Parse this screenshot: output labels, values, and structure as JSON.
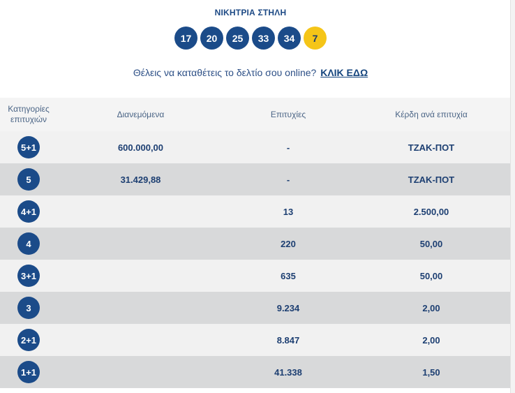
{
  "header": {
    "winning_title": "ΝΙΚΗΤΡΙΑ ΣΤΗΛΗ",
    "numbers": [
      "17",
      "20",
      "25",
      "33",
      "34"
    ],
    "bonus_number": "7",
    "online_text": "Θέλεις να καταθέτεις το δελτίο σου online?",
    "click_here": "ΚΛΙΚ ΕΔΩ"
  },
  "colors": {
    "ball_blue": "#1b4b89",
    "bonus_yellow": "#f5c518",
    "row_light": "#f1f1f1",
    "row_dark": "#d8d9da"
  },
  "table": {
    "headers": {
      "category_line1": "Κατηγορίες",
      "category_line2": "επιτυχιών",
      "distributed": "Διανεμόμενα",
      "winners": "Επιτυχίες",
      "prize_per_winner": "Κέρδη ανά επιτυχία"
    },
    "rows": [
      {
        "category": "5+1",
        "distributed": "600.000,00",
        "winners": "-",
        "prize": "ΤΖΑΚ-ΠΟΤ"
      },
      {
        "category": "5",
        "distributed": "31.429,88",
        "winners": "-",
        "prize": "ΤΖΑΚ-ΠΟΤ"
      },
      {
        "category": "4+1",
        "distributed": "",
        "winners": "13",
        "prize": "2.500,00"
      },
      {
        "category": "4",
        "distributed": "",
        "winners": "220",
        "prize": "50,00"
      },
      {
        "category": "3+1",
        "distributed": "",
        "winners": "635",
        "prize": "50,00"
      },
      {
        "category": "3",
        "distributed": "",
        "winners": "9.234",
        "prize": "2,00"
      },
      {
        "category": "2+1",
        "distributed": "",
        "winners": "8.847",
        "prize": "2,00"
      },
      {
        "category": "1+1",
        "distributed": "",
        "winners": "41.338",
        "prize": "1,50"
      }
    ]
  }
}
